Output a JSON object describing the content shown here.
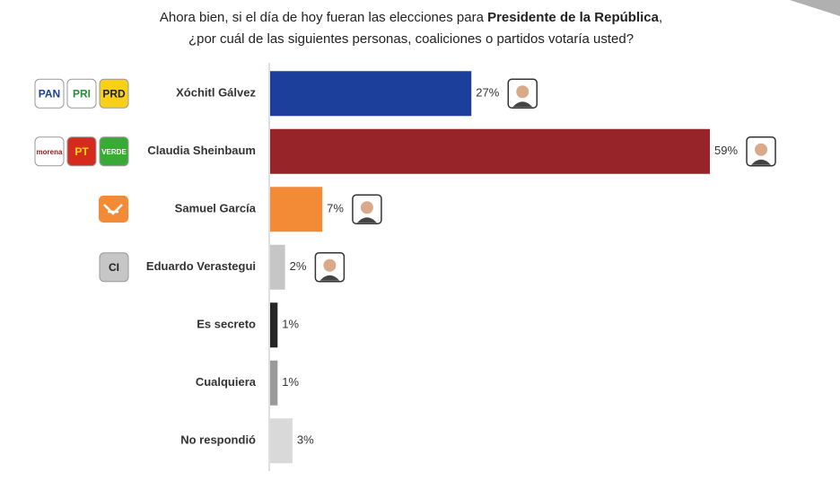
{
  "chart_data": {
    "type": "bar",
    "title_parts": [
      "Ahora bien, si el día de hoy fueran las elecciones para ",
      "Presidente de la República",
      ",",
      "¿por cuál de las siguientes personas, coaliciones o partidos votaría usted?"
    ],
    "categories": [
      "Xóchitl Gálvez",
      "Claudia Sheinbaum",
      "Samuel García",
      "Eduardo Verastegui",
      "Es secreto",
      "Cualquiera",
      "No respondió"
    ],
    "values": [
      27,
      59,
      7,
      2,
      1,
      1,
      3
    ],
    "value_labels": [
      "27%",
      "59%",
      "7%",
      "2%",
      "1%",
      "1%",
      "3%"
    ],
    "colors": [
      "#1c3f9c",
      "#962429",
      "#f28a36",
      "#c6c6c6",
      "#262626",
      "#9a9a9a",
      "#d9d9d9"
    ],
    "photos": [
      true,
      true,
      true,
      true,
      false,
      false,
      false
    ],
    "logos": [
      [
        "PAN",
        "PRI",
        "PRD"
      ],
      [
        "morena",
        "PT",
        "VERDE"
      ],
      [],
      [
        "CI"
      ],
      [],
      [],
      []
    ]
  }
}
